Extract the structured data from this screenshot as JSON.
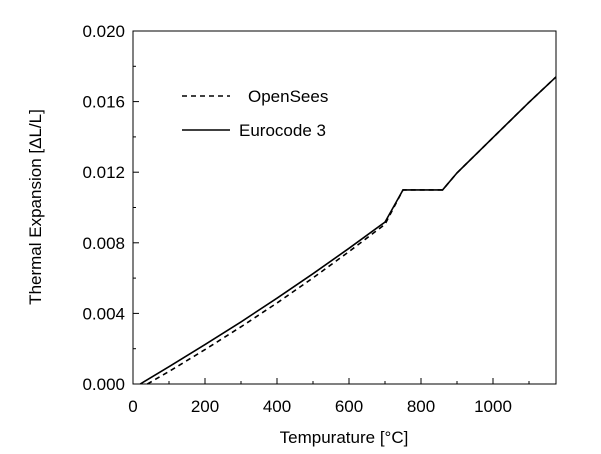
{
  "chart_data": {
    "type": "line",
    "xlabel": "Tempurature [°C]",
    "ylabel": "Thermal Expansion [ΔL/L]",
    "xlim": [
      0,
      1175
    ],
    "ylim": [
      0,
      0.02
    ],
    "x_ticks": [
      "0",
      "200",
      "400",
      "600",
      "800",
      "1000"
    ],
    "y_ticks": [
      "0.000",
      "0.004",
      "0.008",
      "0.012",
      "0.016",
      "0.020"
    ],
    "grid": false,
    "legend_position": "top-left",
    "series": [
      {
        "name": "OpenSees",
        "style": "dashed",
        "color": "#000000",
        "x": [
          40,
          100,
          200,
          300,
          400,
          500,
          600,
          700,
          750,
          860,
          900,
          1000,
          1100,
          1175
        ],
        "y": [
          0.0,
          0.00071,
          0.00195,
          0.00324,
          0.00459,
          0.00601,
          0.0075,
          0.00905,
          0.011,
          0.011,
          0.01196,
          0.01396,
          0.01596,
          0.0174
        ]
      },
      {
        "name": "Eurocode 3",
        "style": "solid",
        "color": "#000000",
        "x": [
          20,
          100,
          200,
          300,
          400,
          500,
          600,
          700,
          750,
          860,
          900,
          1000,
          1100,
          1175
        ],
        "y": [
          0.0,
          0.00098,
          0.00223,
          0.00352,
          0.00486,
          0.00625,
          0.00769,
          0.00917,
          0.011,
          0.011,
          0.01196,
          0.01396,
          0.01596,
          0.0174
        ]
      }
    ]
  }
}
